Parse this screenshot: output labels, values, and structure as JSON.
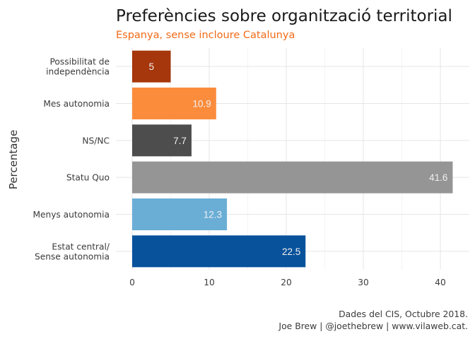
{
  "chart_data": {
    "type": "bar",
    "orientation": "horizontal",
    "title": "Preferències sobre organització territorial",
    "subtitle": "Espanya, sense incloure Catalunya",
    "xlabel": "",
    "ylabel": "Percentage",
    "xlim": [
      0,
      42
    ],
    "xticks": [
      0,
      10,
      20,
      30,
      40
    ],
    "grid": true,
    "categories": [
      [
        "Possibilitat de",
        "independència"
      ],
      [
        "Mes autonomia"
      ],
      [
        "NS/NC"
      ],
      [
        "Statu Quo"
      ],
      [
        "Menys autonomia"
      ],
      [
        "Estat central/",
        "Sense autonomia"
      ]
    ],
    "values": [
      5,
      10.9,
      7.7,
      41.6,
      12.3,
      22.5
    ],
    "value_labels": [
      "5",
      "10.9",
      "7.7",
      "41.6",
      "12.3",
      "22.5"
    ],
    "colors": [
      "#a6360b",
      "#fb8c3c",
      "#4d4d4d",
      "#959595",
      "#6aaed6",
      "#08529c"
    ]
  },
  "caption": {
    "line1": "Dades del CIS, Octubre 2018.",
    "line2": "Joe Brew | @joethebrew | www.vilaweb.cat."
  }
}
